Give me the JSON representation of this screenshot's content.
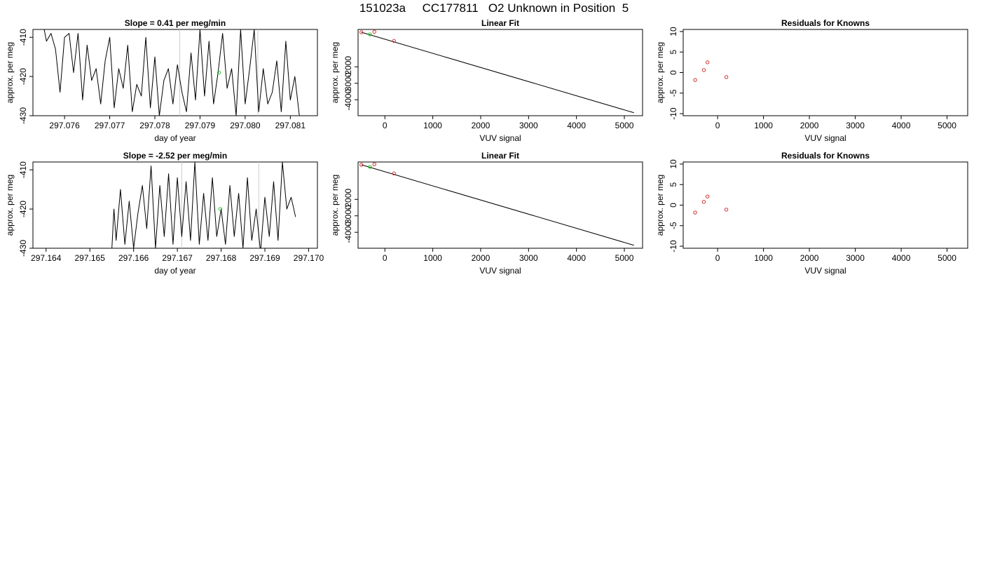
{
  "page_title": "151023a     CC177811   O2 Unknown in Position  5",
  "colors": {
    "line": "#000000",
    "known_point": "#cc3333",
    "unknown_point": "#22cc22",
    "guide_line": "#cccccc"
  },
  "chart_data": [
    {
      "type": "line",
      "title": "Slope =  0.41  per meg/min",
      "xlabel": "day of year",
      "ylabel": "approx. per meg",
      "xlim": [
        297.0753,
        297.0816
      ],
      "ylim": [
        -430,
        -408
      ],
      "x_ticks": [
        "297.076",
        "297.077",
        "297.078",
        "297.079",
        "297.080",
        "297.081"
      ],
      "y_ticks": [
        "-410",
        "-420",
        "-430"
      ],
      "vertical_guides": [
        297.07855,
        297.08028
      ],
      "highlight_point": {
        "x": 297.07942,
        "y": -419.0
      },
      "series": [
        {
          "x": [
            297.07555,
            297.0756,
            297.0757,
            297.0758,
            297.0759,
            297.076,
            297.0761,
            297.0762,
            297.0763,
            297.0764,
            297.0765,
            297.0766,
            297.0767,
            297.0768,
            297.0769,
            297.077,
            297.0771,
            297.0772,
            297.0773,
            297.0774,
            297.0775,
            297.0776,
            297.0777,
            297.0778,
            297.0779,
            297.078,
            297.0781,
            297.0782,
            297.0783,
            297.0784,
            297.0785,
            297.0786,
            297.0787,
            297.0788,
            297.0789,
            297.079,
            297.0791,
            297.0792,
            297.0793,
            297.0794,
            297.0795,
            297.0796,
            297.0797,
            297.0798,
            297.0799,
            297.08,
            297.0801,
            297.0802,
            297.0803,
            297.0804,
            297.0805,
            297.0806,
            297.0807,
            297.0808,
            297.0809,
            297.081,
            297.0811,
            297.0812
          ],
          "values": [
            -408,
            -411,
            -409,
            -413,
            -424,
            -410,
            -409,
            -419,
            -409,
            -426,
            -412,
            -421,
            -418,
            -427,
            -416,
            -410,
            -428,
            -418,
            -423,
            -412,
            -429,
            -422,
            -425,
            -410,
            -428,
            -415,
            -430,
            -421,
            -418,
            -427,
            -417,
            -424,
            -429,
            -414,
            -426,
            -408,
            -425,
            -411,
            -427,
            -419,
            -409,
            -423,
            -418,
            -430,
            -408,
            -427,
            -418,
            -408,
            -429,
            -418,
            -427,
            -424,
            -416,
            -429,
            -411,
            -426,
            -420,
            -430
          ]
        }
      ]
    },
    {
      "type": "line",
      "title": "Linear Fit",
      "xlabel": "VUV signal",
      "ylabel": "approx. per meg",
      "xlim": [
        -560,
        5380
      ],
      "ylim": [
        -4970,
        270
      ],
      "x_ticks": [
        "0",
        "1000",
        "2000",
        "3000",
        "4000",
        "5000"
      ],
      "y_ticks": [
        "-2000",
        "-3000",
        "-4000"
      ],
      "fit_line": {
        "x": [
          -490,
          5200
        ],
        "values": [
          100,
          -4790
        ]
      },
      "known_points": {
        "x": [
          -490,
          -220,
          190
        ],
        "values": [
          100,
          128,
          -427
        ]
      },
      "unknown_points": {
        "x": [
          -310
        ],
        "values": [
          -31
        ]
      }
    },
    {
      "type": "scatter",
      "title": "Residuals for Knowns",
      "xlabel": "VUV signal",
      "ylabel": "approx. per meg",
      "xlim": [
        -750,
        5450
      ],
      "ylim": [
        -10.5,
        10.5
      ],
      "x_ticks": [
        "0",
        "1000",
        "2000",
        "3000",
        "4000",
        "5000"
      ],
      "y_ticks": [
        "10",
        "5",
        "0",
        "-5",
        "-10"
      ],
      "series": [
        {
          "x": [
            -490,
            -300,
            -220,
            190
          ],
          "values": [
            -1.8,
            0.6,
            2.5,
            -1.1
          ]
        }
      ]
    },
    {
      "type": "line",
      "title": "Slope =  -2.52  per meg/min",
      "xlabel": "day of year",
      "ylabel": "approx. per meg",
      "xlim": [
        297.1637,
        297.1702
      ],
      "ylim": [
        -430,
        -408
      ],
      "x_ticks": [
        "297.164",
        "297.165",
        "297.166",
        "297.167",
        "297.168",
        "297.169",
        "297.170"
      ],
      "y_ticks": [
        "-410",
        "-420",
        "-430"
      ],
      "vertical_guides": [
        297.1671,
        297.16886
      ],
      "highlight_point": {
        "x": 297.16798,
        "y": -420.0
      },
      "series": [
        {
          "x": [
            297.1655,
            297.16555,
            297.1656,
            297.1657,
            297.1658,
            297.1659,
            297.166,
            297.1661,
            297.1662,
            297.1663,
            297.1664,
            297.1665,
            297.1666,
            297.1667,
            297.1668,
            297.1669,
            297.167,
            297.1671,
            297.1672,
            297.1673,
            297.1674,
            297.1675,
            297.1676,
            297.1677,
            297.1678,
            297.1679,
            297.168,
            297.1681,
            297.1682,
            297.1683,
            297.1684,
            297.1685,
            297.1686,
            297.1687,
            297.1688,
            297.1689,
            297.169,
            297.1691,
            297.1692,
            297.1693,
            297.1694,
            297.1695,
            297.1696,
            297.1697
          ],
          "values": [
            -431,
            -420,
            -428,
            -415,
            -429,
            -418,
            -430,
            -421,
            -414,
            -425,
            -409,
            -430,
            -414,
            -427,
            -411,
            -429,
            -412,
            -427,
            -413,
            -428,
            -408,
            -429,
            -416,
            -428,
            -412,
            -427,
            -420,
            -429,
            -414,
            -427,
            -416,
            -430,
            -412,
            -428,
            -420,
            -431,
            -417,
            -427,
            -413,
            -428,
            -408,
            -420,
            -417,
            -422
          ]
        }
      ]
    },
    {
      "type": "line",
      "title": "Linear Fit",
      "xlabel": "VUV signal",
      "ylabel": "approx. per meg",
      "xlim": [
        -560,
        5380
      ],
      "ylim": [
        -4970,
        270
      ],
      "x_ticks": [
        "0",
        "1000",
        "2000",
        "3000",
        "4000",
        "5000"
      ],
      "y_ticks": [
        "-2000",
        "-3000",
        "-4000"
      ],
      "fit_line": {
        "x": [
          -490,
          5200
        ],
        "values": [
          100,
          -4790
        ]
      },
      "known_points": {
        "x": [
          -490,
          -220,
          190
        ],
        "values": [
          100,
          128,
          -427
        ]
      },
      "unknown_points": {
        "x": [
          -310
        ],
        "values": [
          -31
        ]
      }
    },
    {
      "type": "scatter",
      "title": "Residuals for Knowns",
      "xlabel": "VUV signal",
      "ylabel": "approx. per meg",
      "xlim": [
        -750,
        5450
      ],
      "ylim": [
        -10.5,
        10.5
      ],
      "x_ticks": [
        "0",
        "1000",
        "2000",
        "3000",
        "4000",
        "5000"
      ],
      "y_ticks": [
        "10",
        "5",
        "0",
        "-5",
        "-10"
      ],
      "series": [
        {
          "x": [
            -490,
            -300,
            -220,
            190
          ],
          "values": [
            -1.8,
            0.8,
            2.1,
            -1.1
          ]
        }
      ]
    }
  ]
}
